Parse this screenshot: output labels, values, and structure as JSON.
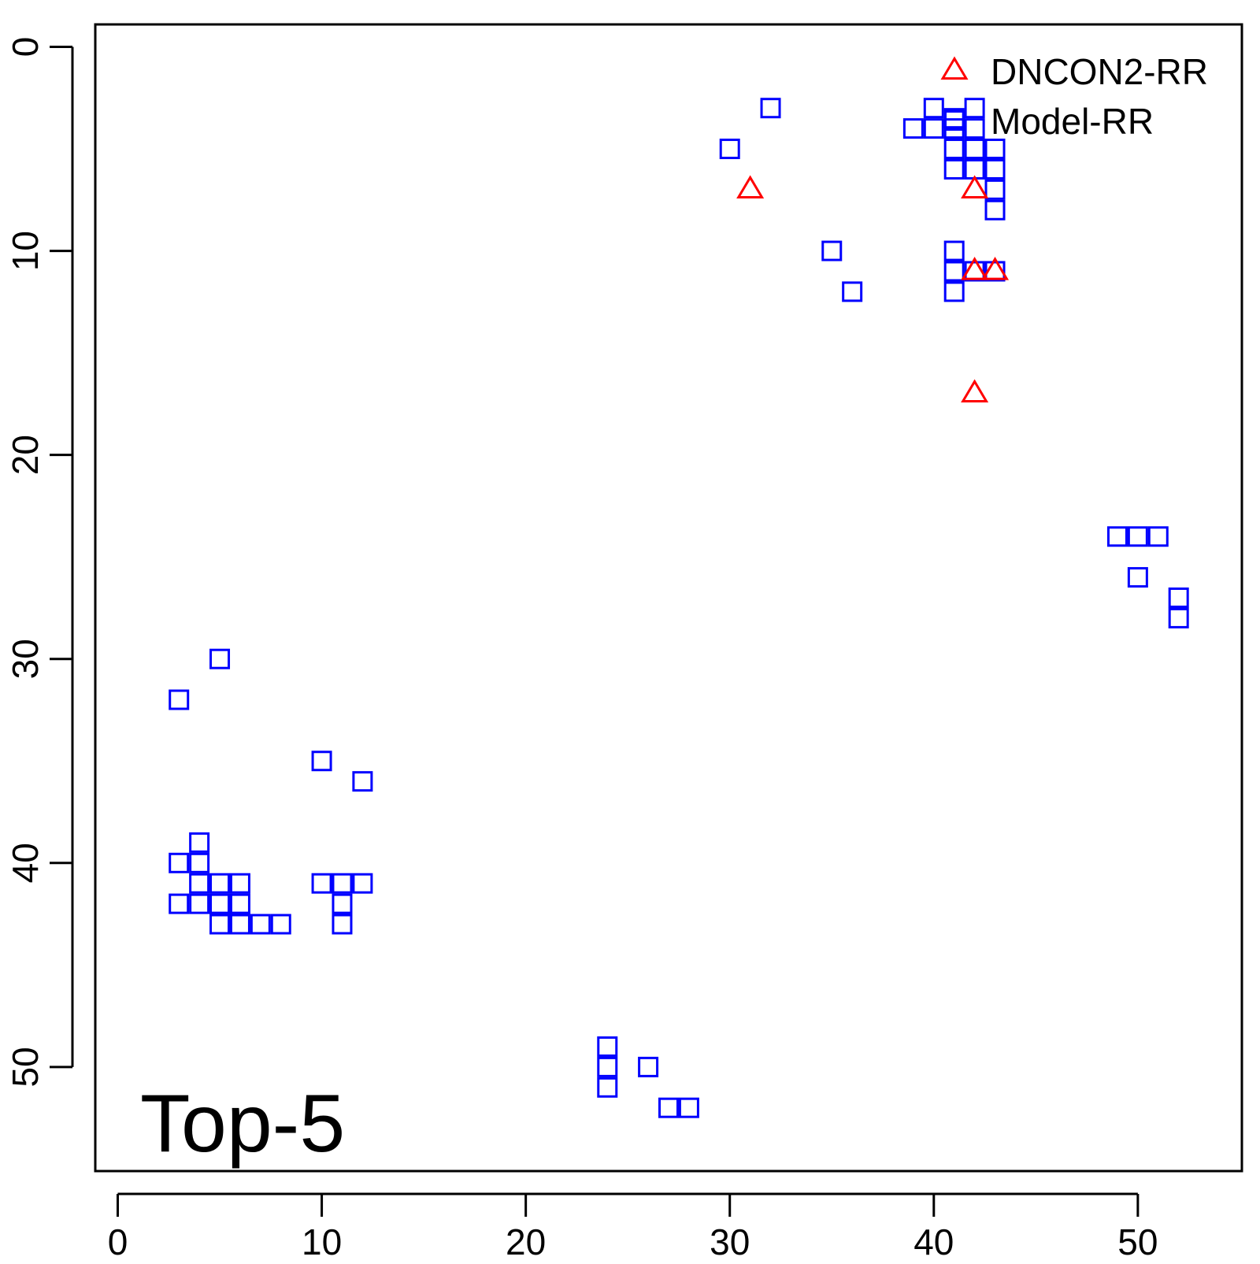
{
  "chart_data": {
    "type": "scatter",
    "title": "",
    "xlabel": "",
    "ylabel": "",
    "annotation": "Top-5",
    "xlim": [
      -1.1,
      55.1
    ],
    "ylim": [
      -1.1,
      55.1
    ],
    "y_reversed": true,
    "x_ticks": [
      0,
      10,
      20,
      30,
      40,
      50
    ],
    "y_ticks": [
      0,
      10,
      20,
      30,
      40,
      50
    ],
    "x_tick_labels": [
      "0",
      "10",
      "20",
      "30",
      "40",
      "50"
    ],
    "y_tick_labels": [
      "0",
      "10",
      "20",
      "30",
      "40",
      "50"
    ],
    "grid": false,
    "legend_position": "top-right",
    "series": [
      {
        "name": "DNCON2-RR",
        "marker": "triangle",
        "color": "#ff0000",
        "points": [
          [
            31,
            7
          ],
          [
            42,
            7
          ],
          [
            42,
            11
          ],
          [
            43,
            11
          ],
          [
            42,
            17
          ]
        ]
      },
      {
        "name": "Model-RR",
        "marker": "square",
        "color": "#0000ff",
        "points": [
          [
            32,
            3
          ],
          [
            30,
            5
          ],
          [
            39,
            4
          ],
          [
            40,
            3
          ],
          [
            40,
            4
          ],
          [
            41,
            3.5
          ],
          [
            41,
            4
          ],
          [
            41,
            5
          ],
          [
            41,
            6
          ],
          [
            42,
            3
          ],
          [
            42,
            4
          ],
          [
            42,
            5
          ],
          [
            42,
            6
          ],
          [
            43,
            5
          ],
          [
            43,
            6
          ],
          [
            43,
            7
          ],
          [
            43,
            8
          ],
          [
            35,
            10
          ],
          [
            36,
            12
          ],
          [
            41,
            10
          ],
          [
            41,
            11
          ],
          [
            41,
            12
          ],
          [
            42,
            11
          ],
          [
            43,
            11
          ],
          [
            49,
            24
          ],
          [
            50,
            24
          ],
          [
            51,
            24
          ],
          [
            50,
            26
          ],
          [
            52,
            27
          ],
          [
            52,
            28
          ],
          [
            5,
            30
          ],
          [
            3,
            32
          ],
          [
            10,
            35
          ],
          [
            12,
            36
          ],
          [
            4,
            39
          ],
          [
            3,
            40
          ],
          [
            4,
            40
          ],
          [
            4,
            41
          ],
          [
            5,
            41
          ],
          [
            6,
            41
          ],
          [
            3,
            42
          ],
          [
            4,
            42
          ],
          [
            5,
            42
          ],
          [
            6,
            42
          ],
          [
            5,
            43
          ],
          [
            6,
            43
          ],
          [
            7,
            43
          ],
          [
            8,
            43
          ],
          [
            10,
            41
          ],
          [
            11,
            41
          ],
          [
            12,
            41
          ],
          [
            11,
            42
          ],
          [
            11,
            43
          ],
          [
            24,
            49
          ],
          [
            24,
            50
          ],
          [
            24,
            51
          ],
          [
            26,
            50
          ],
          [
            27,
            52
          ],
          [
            28,
            52
          ]
        ]
      }
    ]
  }
}
